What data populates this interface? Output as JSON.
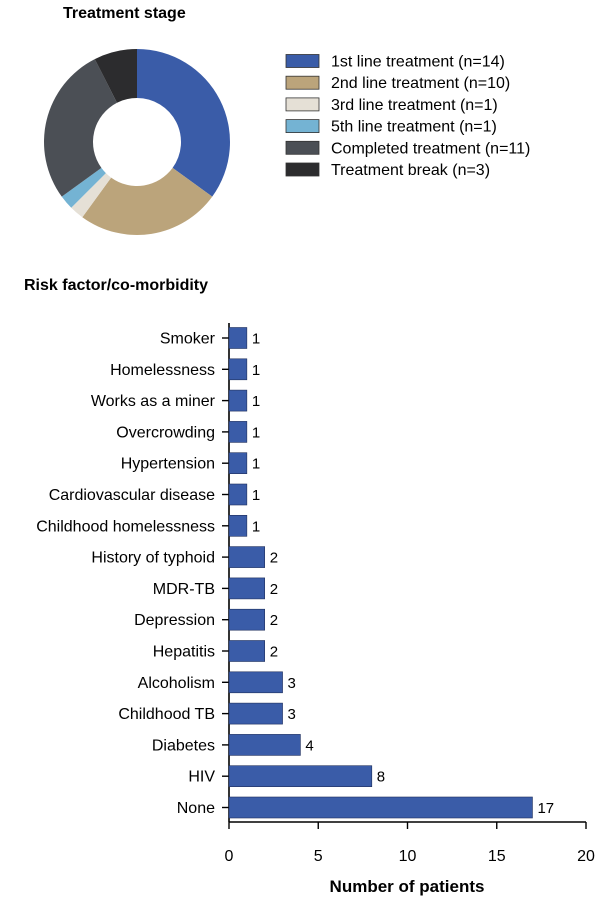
{
  "chart_data": [
    {
      "type": "pie",
      "title": "Treatment stage",
      "donut": true,
      "legend_position": "right",
      "slices": [
        {
          "label": "1st line treatment (n=14)",
          "value": 14,
          "color": "#3a5ca8"
        },
        {
          "label": "2nd line treatment (n=10)",
          "value": 10,
          "color": "#bba47b"
        },
        {
          "label": "3rd line treatment (n=1)",
          "value": 1,
          "color": "#e5e0d6"
        },
        {
          "label": "5th line treatment (n=1)",
          "value": 1,
          "color": "#74b3d3"
        },
        {
          "label": "Completed treatment (n=11)",
          "value": 11,
          "color": "#4b4f55"
        },
        {
          "label": "Treatment break (n=3)",
          "value": 3,
          "color": "#2c2c2e"
        }
      ]
    },
    {
      "type": "bar",
      "orientation": "horizontal",
      "title": "Risk factor/co-morbidity",
      "xlabel": "Number of patients",
      "ylabel": "",
      "xlim": [
        0,
        20
      ],
      "xticks": [
        0,
        5,
        10,
        15,
        20
      ],
      "bar_color": "#3a5ca8",
      "grid": false,
      "categories": [
        "Smoker",
        "Homelessness",
        "Works as a miner",
        "Overcrowding",
        "Hypertension",
        "Cardiovascular disease",
        "Childhood homelessness",
        "History of typhoid",
        "MDR-TB",
        "Depression",
        "Hepatitis",
        "Alcoholism",
        "Childhood TB",
        "Diabetes",
        "HIV",
        "None"
      ],
      "values": [
        1,
        1,
        1,
        1,
        1,
        1,
        1,
        2,
        2,
        2,
        2,
        3,
        3,
        4,
        8,
        17
      ]
    }
  ]
}
